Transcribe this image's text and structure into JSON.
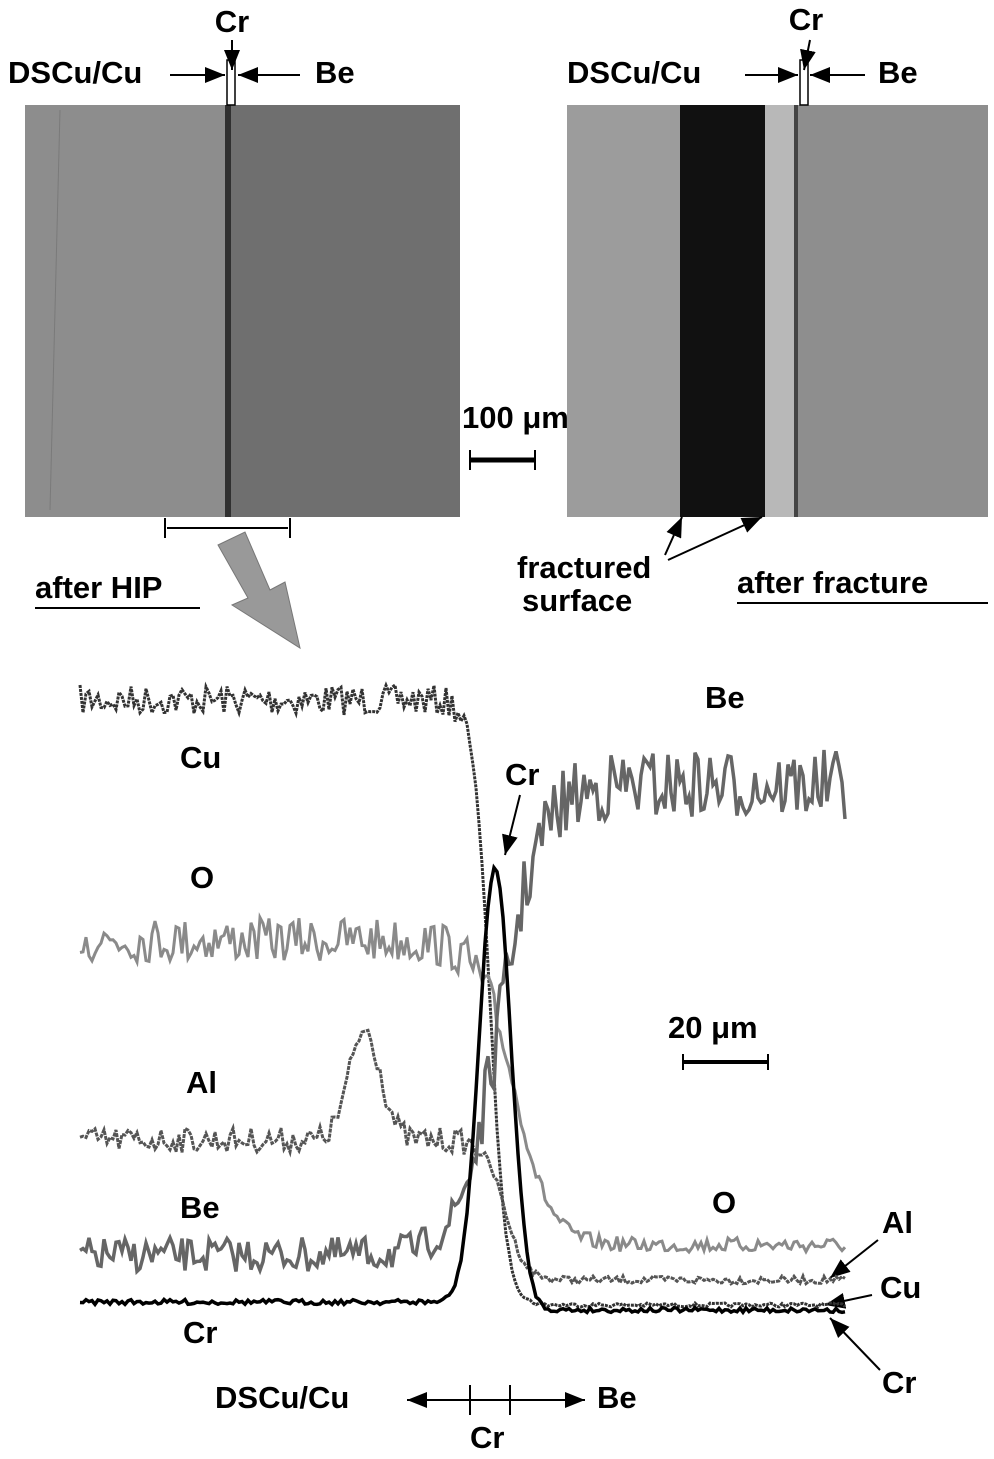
{
  "micrographs": [
    {
      "top_label": "Cr",
      "left_label": "DSCu/Cu",
      "right_label": "Be",
      "caption": "after HIP"
    },
    {
      "top_label": "Cr",
      "left_label": "DSCu/Cu",
      "right_label": "Be",
      "caption": "after fracture",
      "annotation": [
        "fractured",
        "surface"
      ]
    }
  ],
  "scale_bar_top": "100 μm",
  "profile": {
    "left_labels": [
      "Cu",
      "O",
      "Al",
      "Be",
      "Cr"
    ],
    "peak_labels": [
      "Be",
      "Cr"
    ],
    "right_labels": [
      "O",
      "Al",
      "Cu",
      "Cr"
    ],
    "scale_bar": "20 μm",
    "axis": {
      "left": "DSCu/Cu",
      "middle": "Cr",
      "right": "Be"
    }
  }
}
